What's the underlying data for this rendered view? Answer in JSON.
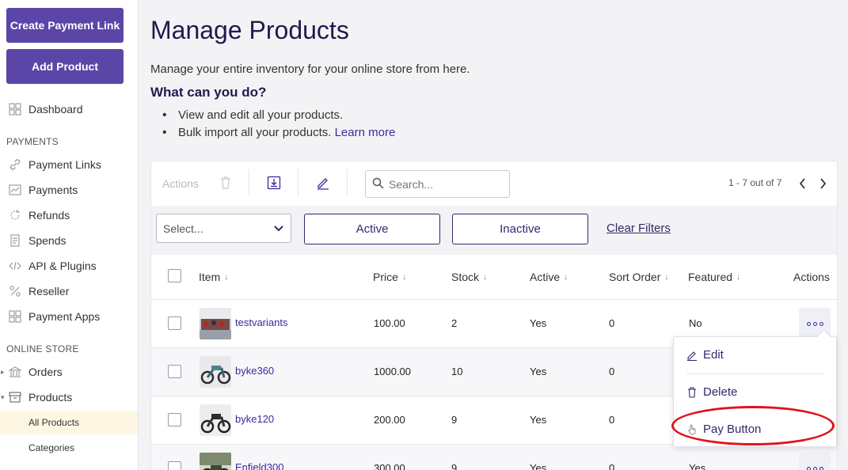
{
  "sidebar": {
    "create_link_button": "Create Payment Link",
    "add_product_button": "Add Product",
    "dashboard": "Dashboard",
    "payments_section": "PAYMENTS",
    "payment_links": "Payment Links",
    "payments": "Payments",
    "refunds": "Refunds",
    "spends": "Spends",
    "api_plugins": "API & Plugins",
    "reseller": "Reseller",
    "payment_apps": "Payment Apps",
    "online_store_section": "ONLINE STORE",
    "orders": "Orders",
    "products": "Products",
    "all_products": "All Products",
    "categories": "Categories"
  },
  "header": {
    "title": "Manage Products",
    "description": "Manage your entire inventory for your online store from here.",
    "subtitle": "What can you do?",
    "bullet_1": "View and edit all your products.",
    "bullet_2": "Bulk import all your products.",
    "learn_more": "Learn more"
  },
  "toolbar": {
    "actions_label": "Actions",
    "search_placeholder": "Search...",
    "pagination": "1 - 7 out of 7"
  },
  "filters": {
    "select_placeholder": "Select...",
    "active": "Active",
    "inactive": "Inactive",
    "clear": "Clear Filters"
  },
  "table": {
    "columns": {
      "item": "Item",
      "price": "Price",
      "stock": "Stock",
      "active": "Active",
      "sort_order": "Sort Order",
      "featured": "Featured",
      "actions": "Actions"
    },
    "rows": [
      {
        "item": "testvariants",
        "price": "100.00",
        "stock": "2",
        "active": "Yes",
        "sort_order": "0",
        "featured": "No"
      },
      {
        "item": "byke360",
        "price": "1000.00",
        "stock": "10",
        "active": "Yes",
        "sort_order": "0",
        "featured": ""
      },
      {
        "item": "byke120",
        "price": "200.00",
        "stock": "9",
        "active": "Yes",
        "sort_order": "0",
        "featured": ""
      },
      {
        "item": "Enfield300",
        "price": "300.00",
        "stock": "9",
        "active": "Yes",
        "sort_order": "0",
        "featured": "Yes"
      }
    ]
  },
  "row_menu": {
    "edit": "Edit",
    "delete": "Delete",
    "pay_button": "Pay Button"
  },
  "colors": {
    "brand": "#5b46a8",
    "link": "#3a2a9c",
    "highlight": "#e3121a"
  }
}
